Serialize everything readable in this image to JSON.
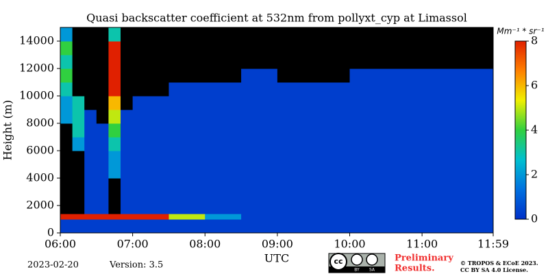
{
  "chart_data": {
    "type": "heatmap",
    "title": "Quasi backscatter coefficient at 532nm from pollyxt_cyp at Limassol",
    "x_label": "UTC",
    "y_label": "Height (m)",
    "x": [
      0,
      10,
      20,
      30,
      40,
      50,
      60,
      90,
      120,
      150,
      180,
      240,
      300,
      359
    ],
    "y": [
      0,
      1000,
      1400,
      2000,
      3000,
      4000,
      5000,
      6000,
      7000,
      8000,
      9000,
      10000,
      11000,
      12000,
      13000,
      14000,
      15000
    ],
    "z": [
      [
        0.3,
        0.3,
        0.3,
        0.3,
        0.3,
        0.3,
        0.3,
        0.3,
        0.3,
        0.3,
        0.3,
        0.3,
        0.3
      ],
      [
        8,
        8,
        8,
        8,
        8,
        8,
        8,
        5,
        2,
        0.3,
        0.3,
        0.3,
        0.3
      ],
      [
        null,
        null,
        0.3,
        0.3,
        null,
        0.3,
        0.3,
        0.3,
        0.3,
        0.3,
        0.3,
        0.3,
        0.3
      ],
      [
        null,
        null,
        0.3,
        0.3,
        null,
        0.3,
        0.3,
        0.3,
        0.3,
        0.3,
        0.3,
        0.3,
        0.3
      ],
      [
        null,
        null,
        0.3,
        0.3,
        null,
        0.3,
        0.3,
        0.3,
        0.3,
        0.3,
        0.3,
        0.3,
        0.3
      ],
      [
        null,
        null,
        0.3,
        0.3,
        2,
        0.3,
        0.3,
        0.3,
        0.3,
        0.3,
        0.3,
        0.3,
        0.3
      ],
      [
        null,
        null,
        0.3,
        0.3,
        2,
        0.3,
        0.3,
        0.3,
        0.3,
        0.3,
        0.3,
        0.3,
        0.3
      ],
      [
        null,
        2,
        0.3,
        0.3,
        3,
        0.3,
        0.3,
        0.3,
        0.3,
        0.3,
        0.3,
        0.3,
        0.3
      ],
      [
        null,
        3,
        0.3,
        0.3,
        4,
        0.3,
        0.3,
        0.3,
        0.3,
        0.3,
        0.3,
        0.3,
        0.3
      ],
      [
        2,
        3,
        0.3,
        null,
        5,
        0.3,
        0.3,
        0.3,
        0.3,
        0.3,
        0.3,
        0.3,
        0.3
      ],
      [
        2,
        3,
        null,
        null,
        6,
        null,
        0.3,
        0.3,
        0.3,
        0.3,
        0.3,
        0.3,
        0.3
      ],
      [
        3,
        null,
        null,
        null,
        8,
        null,
        null,
        0.3,
        0.3,
        0.3,
        0.3,
        0.3,
        0.3
      ],
      [
        4,
        null,
        null,
        null,
        8,
        null,
        null,
        null,
        null,
        0.3,
        null,
        0.3,
        0.3
      ],
      [
        3,
        null,
        null,
        null,
        8,
        null,
        null,
        null,
        null,
        null,
        null,
        null,
        null
      ],
      [
        4,
        null,
        null,
        null,
        8,
        null,
        null,
        null,
        null,
        null,
        null,
        null,
        null
      ],
      [
        2,
        null,
        null,
        null,
        3,
        null,
        null,
        null,
        null,
        null,
        null,
        null,
        null
      ]
    ],
    "xlim": [
      0,
      359
    ],
    "ylim": [
      0,
      15000
    ],
    "xticks": [
      {
        "value": 0,
        "label": "06:00"
      },
      {
        "value": 60,
        "label": "07:00"
      },
      {
        "value": 120,
        "label": "08:00"
      },
      {
        "value": 180,
        "label": "09:00"
      },
      {
        "value": 240,
        "label": "10:00"
      },
      {
        "value": 300,
        "label": "11:00"
      },
      {
        "value": 359,
        "label": "11:59"
      }
    ],
    "yticks": [
      0,
      2000,
      4000,
      6000,
      8000,
      10000,
      12000,
      14000
    ],
    "colorbar_label": "Mm⁻¹ * sr⁻¹",
    "zlim": [
      0,
      8
    ],
    "zticks": [
      0,
      2,
      4,
      6,
      8
    ],
    "colormap": [
      "#0030c8",
      "#0070e0",
      "#00c0d0",
      "#30d040",
      "#f0f000",
      "#ff8000",
      "#e02000"
    ],
    "missing_color": "#000000"
  },
  "footer": {
    "date": "2023-02-20",
    "version": "Version: 3.5",
    "license_logo": [
      "cc",
      "BY",
      "SA"
    ],
    "notice": [
      "Preliminary",
      "Results."
    ],
    "copyright": [
      "© TROPOS & ECoE 2023.",
      "CC BY SA 4.0 License."
    ]
  }
}
